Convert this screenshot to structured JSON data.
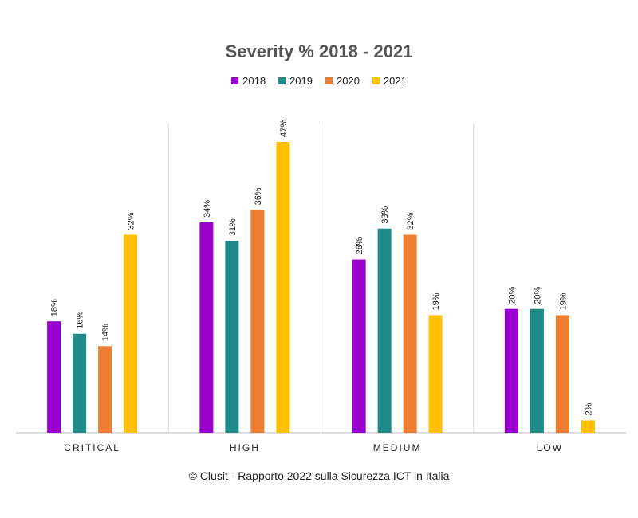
{
  "chart_data": {
    "type": "bar",
    "title": "Severity % 2018 - 2021",
    "categories": [
      "CRITICAL",
      "HIGH",
      "MEDIUM",
      "LOW"
    ],
    "series": [
      {
        "name": "2018",
        "color": "#9900cc",
        "values": [
          18,
          34,
          28,
          20
        ],
        "labels": [
          "18%",
          "34%",
          "28%",
          "20%"
        ]
      },
      {
        "name": "2019",
        "color": "#1f8a8a",
        "values": [
          16,
          31,
          33,
          20
        ],
        "labels": [
          "16%",
          "31%",
          "33%",
          "20%"
        ]
      },
      {
        "name": "2020",
        "color": "#ed7d31",
        "values": [
          14,
          36,
          32,
          19
        ],
        "labels": [
          "14%",
          "36%",
          "32%",
          "19%"
        ]
      },
      {
        "name": "2021",
        "color": "#ffc000",
        "values": [
          32,
          47,
          19,
          2
        ],
        "labels": [
          "32%",
          "47%",
          "19%",
          "2%"
        ]
      }
    ],
    "ylim": [
      0,
      47
    ],
    "grid": false,
    "legend_position": "top"
  },
  "caption": "© Clusit - Rapporto 2022 sulla Sicurezza ICT in Italia"
}
